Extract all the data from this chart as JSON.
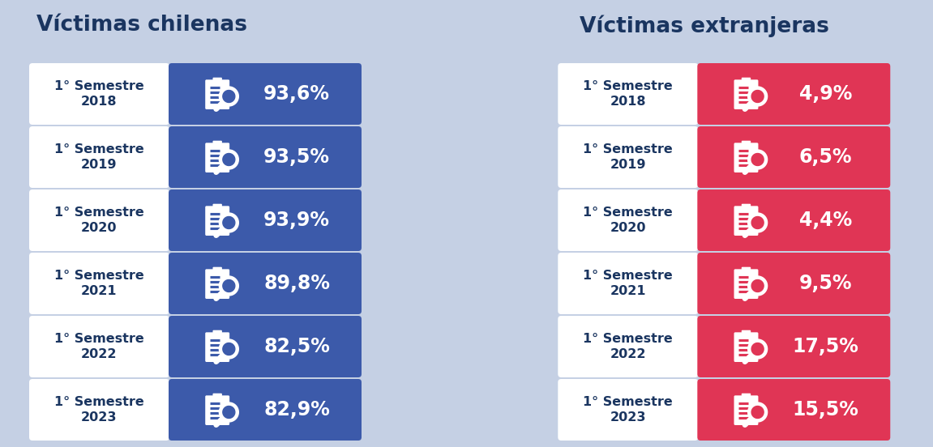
{
  "background_color": "#c5d0e4",
  "left_title": "Víctimas chilenas",
  "right_title": "Víctimas extranjeras",
  "title_color": "#1a3560",
  "title_fontsize": 19,
  "years": [
    "1° Semestre\n2018",
    "1° Semestre\n2019",
    "1° Semestre\n2020",
    "1° Semestre\n2021",
    "1° Semestre\n2022",
    "1° Semestre\n2023"
  ],
  "chilenas_values": [
    "93,6%",
    "93,5%",
    "93,9%",
    "89,8%",
    "82,5%",
    "82,9%"
  ],
  "extranjeras_values": [
    "4,9%",
    "6,5%",
    "4,4%",
    "9,5%",
    "17,5%",
    "15,5%"
  ],
  "blue_color": "#3c5aaa",
  "red_color": "#e03555",
  "white": "#ffffff",
  "label_text_color": "#1a3560",
  "value_text_color": "#ffffff",
  "label_fontsize": 11.5,
  "value_fontsize": 17,
  "fig_width": 11.51,
  "fig_height": 5.52,
  "dpi": 100
}
